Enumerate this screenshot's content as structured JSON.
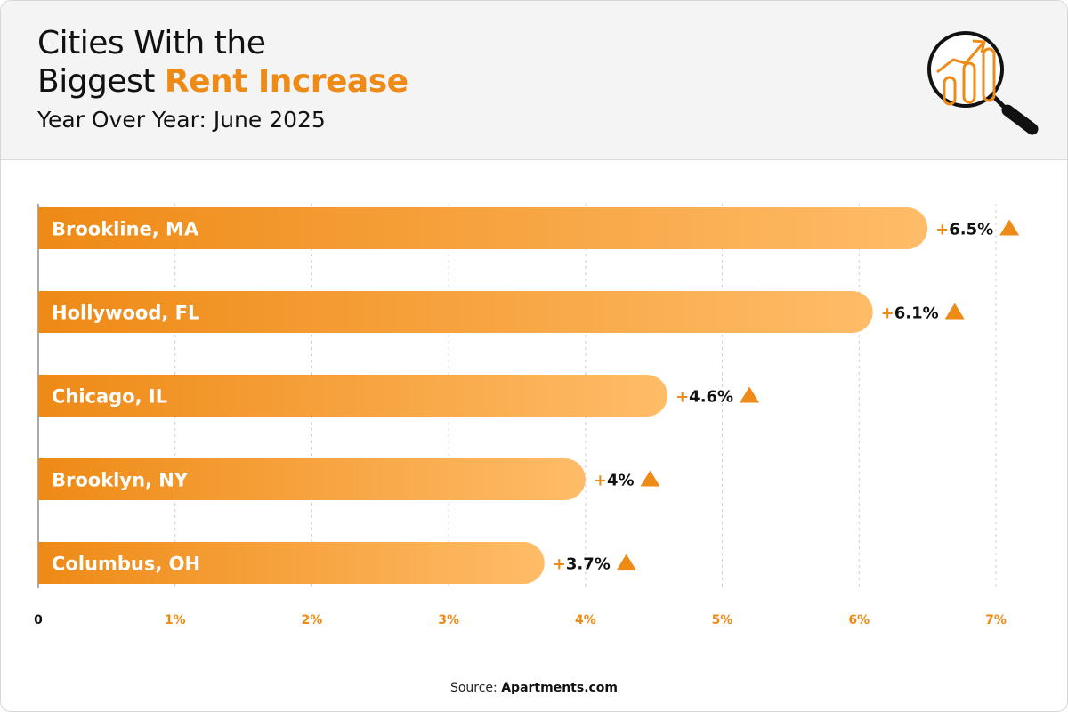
{
  "header": {
    "title_line1": "Cities With the",
    "title_line2_plain": "Biggest ",
    "title_line2_accent": "Rent Increase",
    "subtitle": "Year Over Year: June 2025",
    "icon": "chart-magnifier-icon"
  },
  "colors": {
    "accent": "#ee8a16",
    "bar_start": "#ee8a16",
    "bar_end": "#ffbc68",
    "grid": "#cccccc",
    "axis": "#aaaaaa"
  },
  "chart_data": {
    "type": "bar",
    "orientation": "horizontal",
    "categories": [
      "Brookline, MA",
      "Hollywood, FL",
      "Chicago, IL",
      "Brooklyn, NY",
      "Columbus, OH"
    ],
    "values": [
      6.5,
      6.1,
      4.6,
      4.0,
      3.7
    ],
    "value_labels": [
      "+6.5%",
      "+6.1%",
      "+4.6%",
      "+4%",
      "+3.7%"
    ],
    "xlim": [
      0,
      7
    ],
    "x_ticks": [
      0,
      1,
      2,
      3,
      4,
      5,
      6,
      7
    ],
    "x_tick_labels": [
      "0",
      "1%",
      "2%",
      "3%",
      "4%",
      "5%",
      "6%",
      "7%"
    ],
    "grid": "vertical-dashed",
    "marker": "up-triangle"
  },
  "footer": {
    "source_label": "Source: ",
    "source_name": "Apartments.com"
  }
}
